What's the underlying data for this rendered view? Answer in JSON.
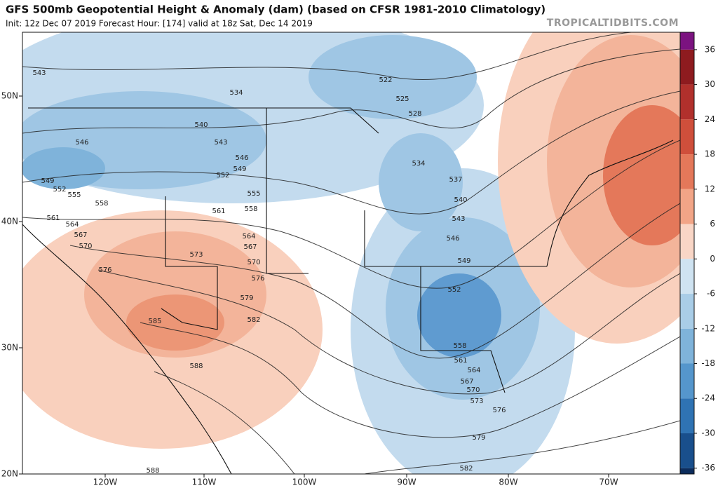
{
  "header": {
    "title": "GFS 500mb Geopotential Height & Anomaly (dam) (based on CFSR 1981-2010 Climatology)",
    "subtitle": "Init: 12z Dec 07 2019   Forecast Hour: [174]   valid at 18z Sat, Dec 14 2019",
    "source": "TROPICALTIDBITS.COM"
  },
  "map": {
    "lon_labels": [
      "120W",
      "110W",
      "100W",
      "90W",
      "80W",
      "70W"
    ],
    "lat_labels": [
      "50N",
      "40N",
      "30N",
      "20N"
    ],
    "contour_labels": [
      543,
      534,
      522,
      525,
      528,
      540,
      546,
      543,
      546,
      549,
      552,
      534,
      537,
      549,
      552,
      555,
      555,
      558,
      561,
      558,
      540,
      561,
      543,
      564,
      567,
      564,
      546,
      570,
      567,
      573,
      570,
      549,
      576,
      576,
      552,
      579,
      585,
      582,
      558,
      561,
      564,
      588,
      567,
      570,
      573,
      576,
      579,
      582,
      588
    ]
  },
  "colorbar": {
    "lim": [
      -37,
      39
    ],
    "ticks": [
      36,
      30,
      24,
      18,
      12,
      6,
      0,
      -6,
      -12,
      -18,
      -24,
      -30,
      -36
    ],
    "colors": [
      "#7b1380",
      "#8e1b1f",
      "#b1302c",
      "#cf4f3b",
      "#e4785a",
      "#f2a587",
      "#f9d6c6",
      "#cfe3f1",
      "#a9cde7",
      "#7fb3da",
      "#5596cc",
      "#2f73b3",
      "#194f8c",
      "#0c2c5c"
    ]
  }
}
